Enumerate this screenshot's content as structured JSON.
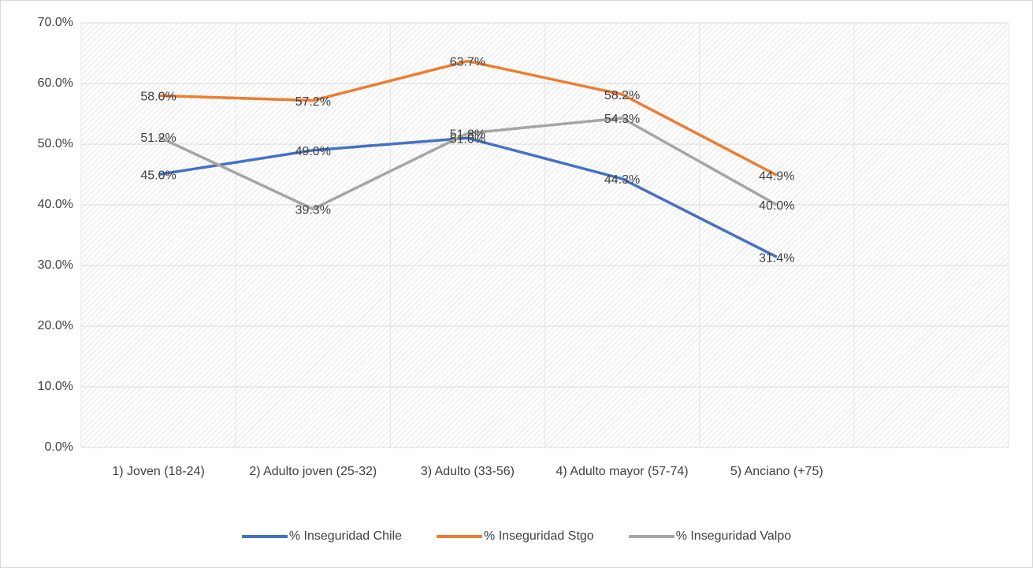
{
  "chart_data": {
    "type": "line",
    "categories": [
      "1) Joven (18-24)",
      "2) Adulto joven (25-32)",
      "3) Adulto  (33-56)",
      "4) Adulto mayor (57-74)",
      "5) Anciano (+75)",
      null
    ],
    "series": [
      {
        "name": "% Inseguridad Chile",
        "color": "#4472c4",
        "values": [
          45.0,
          49.0,
          51.0,
          44.3,
          31.4,
          null
        ],
        "value_labels": [
          "45.0%",
          "49.0%",
          "51.0%",
          "44.3%",
          "31.4%",
          null
        ]
      },
      {
        "name": "% Inseguridad Stgo",
        "color": "#ed7d31",
        "values": [
          58.0,
          57.2,
          63.7,
          58.2,
          44.9,
          null
        ],
        "value_labels": [
          "58.0%",
          "57.2%",
          "63.7%",
          "58.2%",
          "44.9%",
          null
        ]
      },
      {
        "name": "% Inseguridad Valpo",
        "color": "#a5a5a5",
        "values": [
          51.2,
          39.3,
          51.8,
          54.3,
          40.0,
          null
        ],
        "value_labels": [
          "51.2%",
          "39.3%",
          "51.8%",
          "54.3%",
          "40.0%",
          null
        ]
      }
    ],
    "ylim": [
      0,
      70
    ],
    "yticks": [
      {
        "value": 0,
        "label": "0.0%"
      },
      {
        "value": 10,
        "label": "10.0%"
      },
      {
        "value": 20,
        "label": "20.0%"
      },
      {
        "value": 30,
        "label": "30.0%"
      },
      {
        "value": 40,
        "label": "40.0%"
      },
      {
        "value": 50,
        "label": "50.0%"
      },
      {
        "value": 60,
        "label": "60.0%"
      },
      {
        "value": 70,
        "label": "70.0%"
      }
    ],
    "grid": true,
    "legend": "bottom"
  }
}
